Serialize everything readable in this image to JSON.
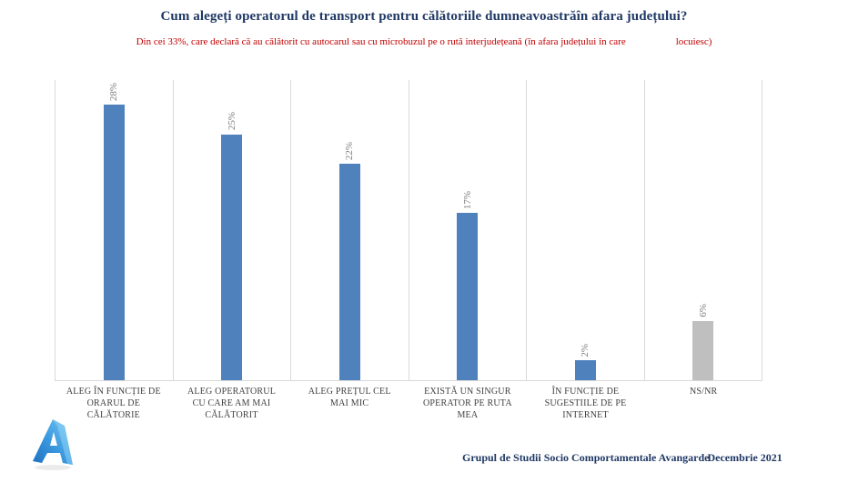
{
  "title": "Cum alegeți operatorul de transport pentru călătoriile dumneavoastrăîn afara județului?",
  "subtitle": {
    "part1": "Din cei 33%, care declară că au călătorit cu autocarul sau cu microbuzul pe o rută interjudețeană (în afara județului în care",
    "part2": "locuiesc)"
  },
  "footer": {
    "source": "Grupul de Studii Socio Comportamentale Avangarde",
    "date": "Decembrie 2021"
  },
  "logo": {
    "icon": "avangarde-a-logo"
  },
  "colors": {
    "title_blue": "#1f3864",
    "subtitle_red": "#c00000",
    "bar_blue": "#4f81bd",
    "bar_gray": "#bfbfbf",
    "value_label_gray": "#7f7f7f",
    "grid_gray": "#d9d9d9",
    "category_label": "#404040"
  },
  "chart_data": {
    "type": "bar",
    "title": "Cum alegeți operatorul de transport pentru călătoriile dumneavoastrăîn afara județului?",
    "categories": [
      "ALEG ÎN FUNCȚIE DE ORARUL DE CĂLĂTORIE",
      "ALEG OPERATORUL CU CARE AM MAI CĂLĂTORIT",
      "ALEG PREȚUL CEL MAI MIC",
      "EXISTĂ UN SINGUR OPERATOR PE RUTA MEA",
      "ÎN FUNCȚIE DE SUGESTIILE DE PE INTERNET",
      "NS/NR"
    ],
    "values": [
      28,
      25,
      22,
      17,
      2,
      6
    ],
    "value_labels": [
      "28%",
      "25%",
      "22%",
      "17%",
      "2%",
      "6%"
    ],
    "bar_colors": [
      "#4f81bd",
      "#4f81bd",
      "#4f81bd",
      "#4f81bd",
      "#4f81bd",
      "#bfbfbf"
    ],
    "value_label_rotation_deg": 90,
    "xlabel": "",
    "ylabel": "",
    "ylim": [
      0,
      30.5
    ],
    "grid": "vertical category separators only",
    "legend": false
  }
}
